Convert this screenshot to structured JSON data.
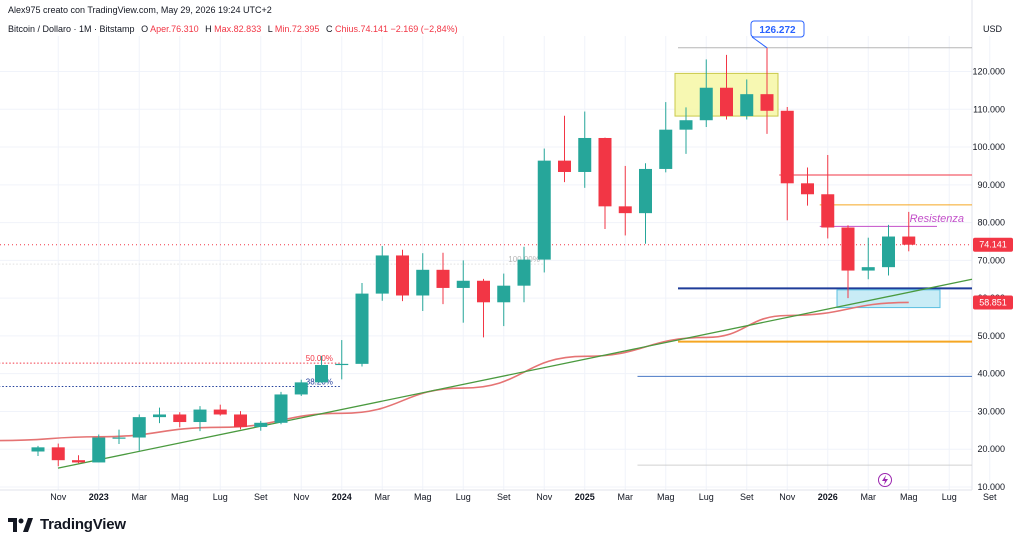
{
  "header": {
    "attribution": "Alex975 creato con TradingView.com, May 29, 2026 19:24 UTC+2",
    "symbol": "Bitcoin / Dollaro · 1M · Bitstamp",
    "ohlc": [
      {
        "label": "O",
        "value": "Aper.76.310"
      },
      {
        "label": "H",
        "value": "Max.82.833"
      },
      {
        "label": "L",
        "value": "Min.72.395"
      },
      {
        "label": "C",
        "value": "Chius.74.141"
      },
      {
        "label": "",
        "value": "−2.169 (−2,84%)"
      }
    ],
    "currency": "USD"
  },
  "footer": {
    "logo_text": "TradingView"
  },
  "colors": {
    "up": "#26a69a",
    "down": "#f23645",
    "ema": "#e57373",
    "trend": "#4a9a3f",
    "support_blue": "#1f3c99",
    "support_orange": "#f5a623",
    "resist_red": "#f23645",
    "resist_orange": "#f5a623",
    "resistance_text": "#c24fc9",
    "box_yellow": "#f6f7a4",
    "box_cyan": "#bfe9f5"
  },
  "chart_data": {
    "type": "candlestick",
    "title": "Bitcoin / Dollaro · 1M · Bitstamp",
    "y_unit": "USD",
    "ylim": [
      9500,
      134000
    ],
    "y_ticks": [
      {
        "value": 120000,
        "label": "120.000"
      },
      {
        "value": 110000,
        "label": "110.000"
      },
      {
        "value": 100000,
        "label": "100.000"
      },
      {
        "value": 90000,
        "label": "90.000"
      },
      {
        "value": 80000,
        "label": "80.000"
      },
      {
        "value": 70000,
        "label": "70.000"
      },
      {
        "value": 60000,
        "label": "60.000"
      },
      {
        "value": 50000,
        "label": "50.000"
      },
      {
        "value": 40000,
        "label": "40.000"
      },
      {
        "value": 30000,
        "label": "30.000"
      },
      {
        "value": 20000,
        "label": "20.000"
      },
      {
        "value": 10000,
        "label": "10.000"
      }
    ],
    "x_ticks": [
      {
        "month": "2022-11",
        "label": "Nov",
        "bold": false
      },
      {
        "month": "2023-01",
        "label": "2023",
        "bold": true
      },
      {
        "month": "2023-03",
        "label": "Mar",
        "bold": false
      },
      {
        "month": "2023-05",
        "label": "Mag",
        "bold": false
      },
      {
        "month": "2023-07",
        "label": "Lug",
        "bold": false
      },
      {
        "month": "2023-09",
        "label": "Set",
        "bold": false
      },
      {
        "month": "2023-11",
        "label": "Nov",
        "bold": false
      },
      {
        "month": "2024-01",
        "label": "2024",
        "bold": true
      },
      {
        "month": "2024-03",
        "label": "Mar",
        "bold": false
      },
      {
        "month": "2024-05",
        "label": "Mag",
        "bold": false
      },
      {
        "month": "2024-07",
        "label": "Lug",
        "bold": false
      },
      {
        "month": "2024-09",
        "label": "Set",
        "bold": false
      },
      {
        "month": "2024-11",
        "label": "Nov",
        "bold": false
      },
      {
        "month": "2025-01",
        "label": "2025",
        "bold": true
      },
      {
        "month": "2025-03",
        "label": "Mar",
        "bold": false
      },
      {
        "month": "2025-05",
        "label": "Mag",
        "bold": false
      },
      {
        "month": "2025-07",
        "label": "Lug",
        "bold": false
      },
      {
        "month": "2025-09",
        "label": "Set",
        "bold": false
      },
      {
        "month": "2025-11",
        "label": "Nov",
        "bold": false
      },
      {
        "month": "2026-01",
        "label": "2026",
        "bold": true
      },
      {
        "month": "2026-03",
        "label": "Mar",
        "bold": false
      },
      {
        "month": "2026-05",
        "label": "Mag",
        "bold": false
      },
      {
        "month": "2026-07",
        "label": "Lug",
        "bold": false
      },
      {
        "month": "2026-09",
        "label": "Set",
        "bold": false
      }
    ],
    "candles": [
      {
        "month": "2022-10",
        "o": 19400,
        "h": 20900,
        "l": 18200,
        "c": 20500
      },
      {
        "month": "2022-11",
        "o": 20500,
        "h": 21500,
        "l": 15500,
        "c": 17100
      },
      {
        "month": "2022-12",
        "o": 17100,
        "h": 18400,
        "l": 16300,
        "c": 16500
      },
      {
        "month": "2023-01",
        "o": 16500,
        "h": 23900,
        "l": 16500,
        "c": 23100
      },
      {
        "month": "2023-02",
        "o": 23100,
        "h": 25200,
        "l": 21400,
        "c": 23100
      },
      {
        "month": "2023-03",
        "o": 23100,
        "h": 29200,
        "l": 19600,
        "c": 28500
      },
      {
        "month": "2023-04",
        "o": 28500,
        "h": 31000,
        "l": 26900,
        "c": 29200
      },
      {
        "month": "2023-05",
        "o": 29200,
        "h": 29800,
        "l": 25800,
        "c": 27200
      },
      {
        "month": "2023-06",
        "o": 27200,
        "h": 31400,
        "l": 24800,
        "c": 30500
      },
      {
        "month": "2023-07",
        "o": 30500,
        "h": 31800,
        "l": 28900,
        "c": 29200
      },
      {
        "month": "2023-08",
        "o": 29200,
        "h": 30100,
        "l": 25300,
        "c": 25900
      },
      {
        "month": "2023-09",
        "o": 25900,
        "h": 27500,
        "l": 24900,
        "c": 27000
      },
      {
        "month": "2023-10",
        "o": 27000,
        "h": 35200,
        "l": 26600,
        "c": 34500
      },
      {
        "month": "2023-11",
        "o": 34500,
        "h": 38400,
        "l": 34100,
        "c": 37700
      },
      {
        "month": "2023-12",
        "o": 37700,
        "h": 44700,
        "l": 37600,
        "c": 42300
      },
      {
        "month": "2024-01",
        "o": 42300,
        "h": 48900,
        "l": 38500,
        "c": 42600
      },
      {
        "month": "2024-02",
        "o": 42600,
        "h": 64000,
        "l": 41900,
        "c": 61200
      },
      {
        "month": "2024-03",
        "o": 61200,
        "h": 73800,
        "l": 59300,
        "c": 71300
      },
      {
        "month": "2024-04",
        "o": 71300,
        "h": 72800,
        "l": 59200,
        "c": 60700
      },
      {
        "month": "2024-05",
        "o": 60700,
        "h": 71900,
        "l": 56600,
        "c": 67500
      },
      {
        "month": "2024-06",
        "o": 67500,
        "h": 72000,
        "l": 58400,
        "c": 62700
      },
      {
        "month": "2024-07",
        "o": 62700,
        "h": 70000,
        "l": 53500,
        "c": 64600
      },
      {
        "month": "2024-08",
        "o": 64600,
        "h": 65100,
        "l": 49600,
        "c": 58900
      },
      {
        "month": "2024-09",
        "o": 58900,
        "h": 66500,
        "l": 52600,
        "c": 63300
      },
      {
        "month": "2024-10",
        "o": 63300,
        "h": 73600,
        "l": 58900,
        "c": 70200
      },
      {
        "month": "2024-11",
        "o": 70200,
        "h": 99600,
        "l": 66800,
        "c": 96400
      },
      {
        "month": "2024-12",
        "o": 96400,
        "h": 108300,
        "l": 90700,
        "c": 93400
      },
      {
        "month": "2025-01",
        "o": 93400,
        "h": 109400,
        "l": 89200,
        "c": 102400
      },
      {
        "month": "2025-02",
        "o": 102400,
        "h": 102500,
        "l": 78300,
        "c": 84300
      },
      {
        "month": "2025-03",
        "o": 84300,
        "h": 95000,
        "l": 76600,
        "c": 82500
      },
      {
        "month": "2025-04",
        "o": 82500,
        "h": 95700,
        "l": 74400,
        "c": 94200
      },
      {
        "month": "2025-05",
        "o": 94200,
        "h": 111900,
        "l": 93300,
        "c": 104600
      },
      {
        "month": "2025-06",
        "o": 104600,
        "h": 110500,
        "l": 98200,
        "c": 107100
      },
      {
        "month": "2025-07",
        "o": 107100,
        "h": 123200,
        "l": 105300,
        "c": 115700
      },
      {
        "month": "2025-08",
        "o": 115700,
        "h": 124400,
        "l": 107300,
        "c": 108200
      },
      {
        "month": "2025-09",
        "o": 108200,
        "h": 117900,
        "l": 107300,
        "c": 114000
      },
      {
        "month": "2025-10",
        "o": 114000,
        "h": 126272,
        "l": 103500,
        "c": 109600
      },
      {
        "month": "2025-11",
        "o": 109600,
        "h": 110600,
        "l": 80600,
        "c": 90400
      },
      {
        "month": "2025-12",
        "o": 90400,
        "h": 94600,
        "l": 84500,
        "c": 87500
      },
      {
        "month": "2026-01",
        "o": 87500,
        "h": 97900,
        "l": 75800,
        "c": 78700
      },
      {
        "month": "2026-02",
        "o": 78700,
        "h": 79300,
        "l": 60000,
        "c": 67300
      },
      {
        "month": "2026-03",
        "o": 67300,
        "h": 76000,
        "l": 65000,
        "c": 68200
      },
      {
        "month": "2026-04",
        "o": 68200,
        "h": 79400,
        "l": 66000,
        "c": 76310
      },
      {
        "month": "2026-05",
        "o": 76310,
        "h": 82833,
        "l": 72395,
        "c": 74141
      }
    ],
    "ema_curve": [
      {
        "month": "2022-07",
        "v": 22300
      },
      {
        "month": "2023-01",
        "v": 23300
      },
      {
        "month": "2023-07",
        "v": 25800
      },
      {
        "month": "2024-01",
        "v": 29500
      },
      {
        "month": "2024-07",
        "v": 36200
      },
      {
        "month": "2025-01",
        "v": 44600
      },
      {
        "month": "2025-07",
        "v": 49600
      },
      {
        "month": "2025-11",
        "v": 55400
      },
      {
        "month": "2026-05",
        "v": 58851
      }
    ],
    "trendline": [
      {
        "month": "2022-08",
        "v": 15000
      },
      {
        "month": "2026-09",
        "v": 65000
      }
    ],
    "horizontal_levels": [
      {
        "name": "resistance-red",
        "value": 92600,
        "from": "2025-11",
        "to": "2026-09",
        "color": "#f23645",
        "style": "solid"
      },
      {
        "name": "resistance-orange",
        "value": 84700,
        "from": "2026-01",
        "to": "2026-09",
        "color": "#f5a623",
        "style": "solid"
      },
      {
        "name": "resistance-purple",
        "value": 79000,
        "from": "2026-01",
        "to": "2026-06",
        "color": "#c24fc9",
        "style": "solid"
      },
      {
        "name": "support-navy",
        "value": 62600,
        "from": "2025-06",
        "to": "2026-09",
        "color": "#1f3c99",
        "style": "solid-thick"
      },
      {
        "name": "support-orange",
        "value": 48500,
        "from": "2025-06",
        "to": "2026-09",
        "color": "#f5a623",
        "style": "solid-thick"
      },
      {
        "name": "support-blue",
        "value": 39300,
        "from": "2025-04",
        "to": "2026-09",
        "color": "#4a78c4",
        "style": "solid"
      },
      {
        "name": "ath-gray",
        "value": 126272,
        "from": "2025-06",
        "to": "2026-09",
        "color": "#b5b5b5",
        "style": "solid"
      },
      {
        "name": "low-gray",
        "value": 15800,
        "from": "2025-04",
        "to": "2026-09",
        "color": "#d0d0d0",
        "style": "solid"
      },
      {
        "name": "price-line",
        "value": 74141,
        "from": "2022-07",
        "to": "2026-09",
        "color": "#f23645",
        "style": "dotted"
      }
    ],
    "fib_levels": [
      {
        "label": "100.00%",
        "value": 69000,
        "from": "2022-07",
        "to": "2024-11",
        "color": "#e0e0e0"
      },
      {
        "label": "50.00%",
        "value": 42800,
        "from": "2022-07",
        "to": "2024-01",
        "color": "#f23645"
      },
      {
        "label": "38.20%",
        "value": 36600,
        "from": "2022-07",
        "to": "2024-01",
        "color": "#1f3c99"
      }
    ],
    "boxes": [
      {
        "name": "top-box",
        "from": "2025-06",
        "to": "2025-10",
        "top": 119500,
        "bottom": 108200
      },
      {
        "name": "bottom-box",
        "from": "2026-02",
        "to": "2026-06",
        "top": 62200,
        "bottom": 57500
      }
    ],
    "annotations": {
      "ath_label": "126.272",
      "resistance_label": "Resistenza",
      "last_price_label": "74.141",
      "ema_label": "58.851"
    }
  }
}
